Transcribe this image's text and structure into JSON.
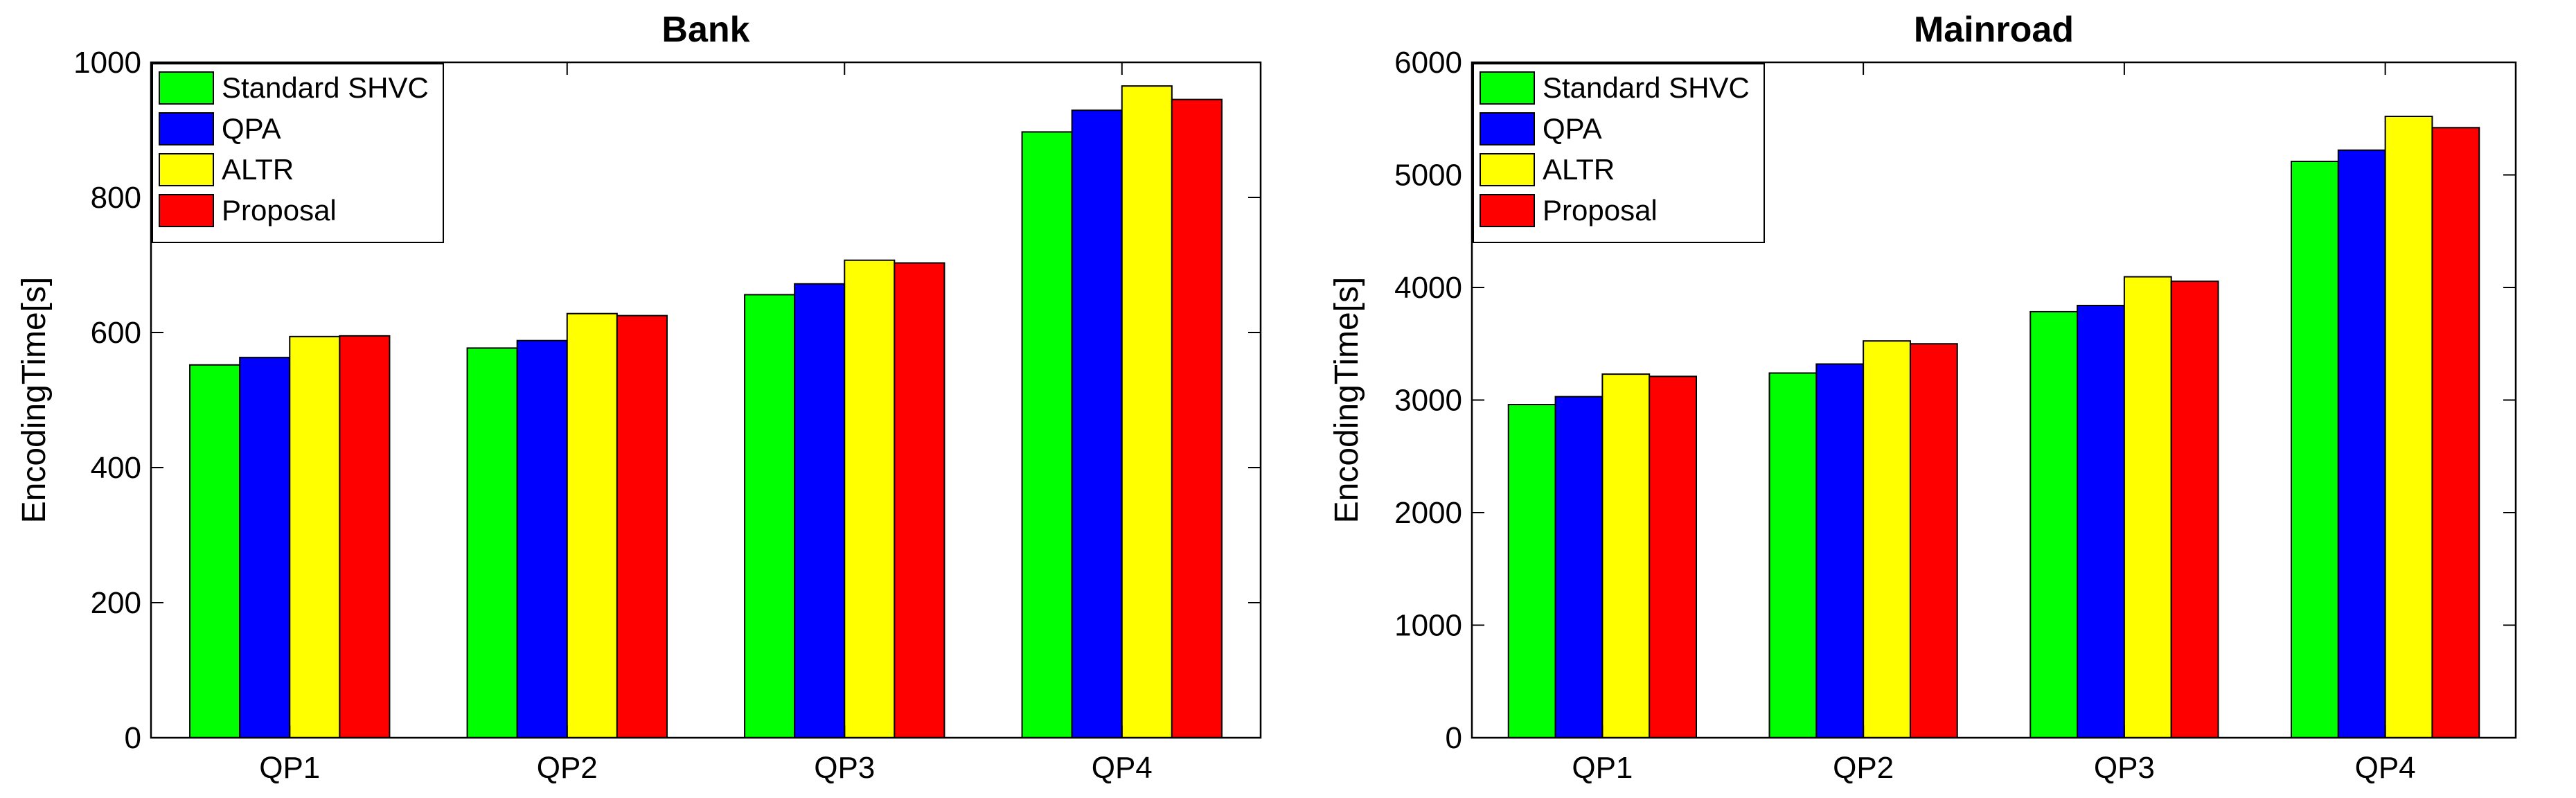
{
  "chart_data": [
    {
      "type": "bar",
      "title": "Bank",
      "xlabel": "",
      "ylabel": "EncodingTime[s]",
      "categories": [
        "QP1",
        "QP2",
        "QP3",
        "QP4"
      ],
      "ylim": [
        0,
        1000
      ],
      "yticks": [
        0,
        200,
        400,
        600,
        800,
        1000
      ],
      "legend_position": "top-left",
      "grid": false,
      "series": [
        {
          "name": "Standard SHVC",
          "color": "#00ff00",
          "values": [
            552,
            577,
            656,
            897
          ]
        },
        {
          "name": "QPA",
          "color": "#0000ff",
          "values": [
            563,
            588,
            672,
            929
          ]
        },
        {
          "name": "ALTR",
          "color": "#ffff00",
          "values": [
            594,
            628,
            707,
            965
          ]
        },
        {
          "name": "Proposal",
          "color": "#ff0000",
          "values": [
            595,
            625,
            703,
            945
          ]
        }
      ]
    },
    {
      "type": "bar",
      "title": "Mainroad",
      "xlabel": "",
      "ylabel": "EncodingTime[s]",
      "categories": [
        "QP1",
        "QP2",
        "QP3",
        "QP4"
      ],
      "ylim": [
        0,
        6000
      ],
      "yticks": [
        0,
        1000,
        2000,
        3000,
        4000,
        5000,
        6000
      ],
      "legend_position": "top-left",
      "grid": false,
      "series": [
        {
          "name": "Standard SHVC",
          "color": "#00ff00",
          "values": [
            2960,
            3240,
            3785,
            5120
          ]
        },
        {
          "name": "QPA",
          "color": "#0000ff",
          "values": [
            3030,
            3320,
            3840,
            5220
          ]
        },
        {
          "name": "ALTR",
          "color": "#ffff00",
          "values": [
            3230,
            3525,
            4095,
            5520
          ]
        },
        {
          "name": "Proposal",
          "color": "#ff0000",
          "values": [
            3210,
            3500,
            4055,
            5420
          ]
        }
      ]
    }
  ]
}
